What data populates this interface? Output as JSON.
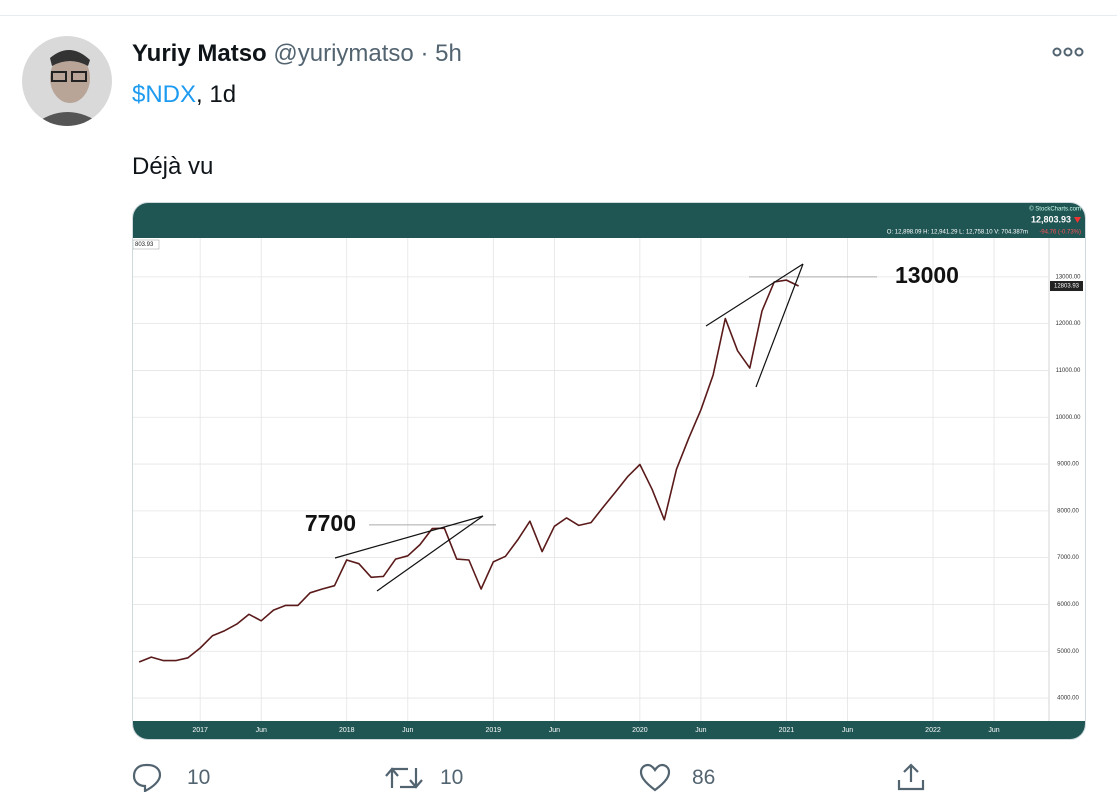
{
  "tweet": {
    "name": "Yuriy Matso",
    "handle": "@yuriymatso",
    "time": "5h",
    "ticker": "$NDX",
    "timeframe": ", 1d",
    "text": "Déjà vu",
    "actions": {
      "reply_count": "10",
      "retweet_count": "10",
      "like_count": "86"
    }
  },
  "chart_data": {
    "type": "line",
    "source": "© StockCharts.com",
    "last_price": "12,803.93",
    "ohlc": "O: 12,898.09  H: 12,941.29  L: 12,758.10  V: 704.387m",
    "change": "-94.76 (-0.73%)",
    "corner_label": "803.93",
    "last_value": 12803.93,
    "annotations": [
      7700,
      13000
    ],
    "categories": [
      null,
      null,
      null,
      null,
      null,
      "2017",
      null,
      null,
      null,
      null,
      "Jun",
      null,
      null,
      null,
      null,
      null,
      null,
      "2018",
      null,
      null,
      null,
      null,
      "Jun",
      null,
      null,
      null,
      null,
      null,
      null,
      "2019",
      null,
      null,
      null,
      null,
      "Jun",
      null,
      null,
      null,
      null,
      null,
      null,
      "2020",
      null,
      null,
      null,
      null,
      "Jun",
      null,
      null,
      null,
      null,
      null,
      null,
      "2021",
      null,
      null,
      null,
      null,
      "Jun",
      null,
      null,
      null,
      null,
      null,
      null,
      "2022",
      null,
      null,
      null,
      null,
      "Jun",
      null,
      null,
      null,
      null
    ],
    "series": [
      {
        "color": "#5a1a1a",
        "values": [
          4770,
          4875,
          4800,
          4800,
          4860,
          5070,
          5330,
          5440,
          5580,
          5790,
          5650,
          5880,
          5980,
          5980,
          6250,
          6330,
          6400,
          6950,
          6870,
          6580,
          6600,
          6970,
          7040,
          7280,
          7620,
          7630,
          6970,
          6950,
          6330,
          6910,
          7030,
          7380,
          7780,
          7130,
          7670,
          7850,
          7690,
          7750,
          8080,
          8400,
          8730,
          8990,
          8460,
          7810,
          8890,
          9550,
          10160,
          10900,
          12110,
          11420,
          11050,
          12270,
          12890,
          12930,
          12804,
          null,
          null,
          null,
          null,
          null,
          null,
          null,
          null,
          null,
          null,
          null,
          null,
          null,
          null,
          null,
          null,
          null,
          null,
          null,
          null
        ]
      }
    ],
    "ylim": [
      3510,
      13830
    ],
    "yticks": [
      {
        "value": 4000,
        "label": "4000.00"
      },
      {
        "value": 5000,
        "label": "5000.00"
      },
      {
        "value": 6000,
        "label": "6000.00"
      },
      {
        "value": 7000,
        "label": "7000.00"
      },
      {
        "value": 8000,
        "label": "8000.00"
      },
      {
        "value": 9000,
        "label": "9000.00"
      },
      {
        "value": 10000,
        "label": "10000.00"
      },
      {
        "value": 11000,
        "label": "11000.00"
      },
      {
        "value": 12000,
        "label": "12000.00"
      },
      {
        "value": 13000,
        "label": "13000.00"
      }
    ],
    "grid": true
  }
}
